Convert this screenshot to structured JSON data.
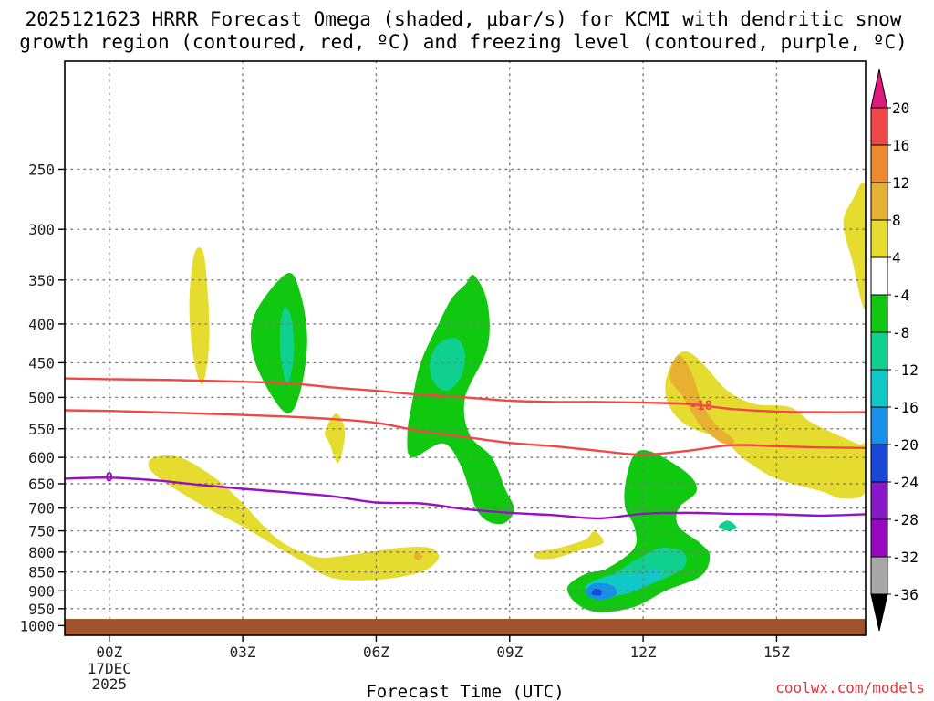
{
  "chart_data": {
    "type": "heatmap",
    "title_line1": "2025121623 HRRR Forecast Omega (shaded, μbar/s) for KCMI with dendritic snow",
    "title_line2": "growth region (contoured, red, ºC) and freezing level (contoured, purple, ºC)",
    "xlabel": "Forecast Time (UTC)",
    "credit": "coolwx.com/models",
    "x_ticks": [
      "00Z",
      "03Z",
      "06Z",
      "09Z",
      "12Z",
      "15Z"
    ],
    "x_tick_hours": [
      0,
      3,
      6,
      9,
      12,
      15
    ],
    "x_date_line1": "17DEC",
    "x_date_line2": "2025",
    "xlim_hours": [
      -1,
      17
    ],
    "y_ticks": [
      250,
      300,
      350,
      400,
      450,
      500,
      550,
      600,
      650,
      700,
      750,
      800,
      850,
      900,
      950,
      1000
    ],
    "y_tick_labels": [
      "250",
      "300",
      "350",
      "400",
      "450",
      "500",
      "550",
      "600",
      "650",
      "700",
      "750",
      "800",
      "850",
      "900",
      "950",
      "1000"
    ],
    "ylim_hpa": [
      180,
      1030
    ],
    "y_scale": "log",
    "colorbar": {
      "labels": [
        "20",
        "16",
        "12",
        "8",
        "4",
        "-4",
        "-8",
        "-12",
        "-16",
        "-20",
        "-24",
        "-28",
        "-32",
        "-36"
      ],
      "bins": [
        {
          "color": "#f04848"
        },
        {
          "color": "#ee8a30"
        },
        {
          "color": "#e8b030"
        },
        {
          "color": "#e6dc30"
        },
        {
          "color": "#ffffff"
        },
        {
          "color": "#10c810"
        },
        {
          "color": "#10d090"
        },
        {
          "color": "#10c8c8"
        },
        {
          "color": "#1890ea"
        },
        {
          "color": "#1848d8"
        },
        {
          "color": "#8818c8"
        },
        {
          "color": "#9808c0"
        },
        {
          "color": "#a8a8a8"
        }
      ],
      "top_arrow_color": "#e01880",
      "bottom_arrow_color": "#000000"
    },
    "ground_color": "#a0522d",
    "ground_hpa": 980,
    "contours": [
      {
        "name": "dgz-minus-12",
        "label": "",
        "color": "#f04848",
        "points": [
          [
            -1,
            472
          ],
          [
            0,
            473
          ],
          [
            2,
            475
          ],
          [
            4,
            479
          ],
          [
            5,
            485
          ],
          [
            6,
            490
          ],
          [
            7,
            496
          ],
          [
            8,
            500
          ],
          [
            9,
            505
          ],
          [
            10,
            507
          ],
          [
            11,
            507
          ],
          [
            12,
            508
          ],
          [
            13,
            510
          ],
          [
            14,
            518
          ],
          [
            15,
            522
          ],
          [
            16,
            523
          ],
          [
            17,
            523
          ]
        ]
      },
      {
        "name": "dgz-minus-18",
        "label": "-18",
        "label_at": [
          13.3,
          512
        ],
        "color": "#f04848",
        "points": [
          [
            -1,
            520
          ],
          [
            0,
            521
          ],
          [
            2,
            525
          ],
          [
            4,
            530
          ],
          [
            5,
            534
          ],
          [
            6,
            540
          ],
          [
            7,
            554
          ],
          [
            8,
            564
          ],
          [
            9,
            574
          ],
          [
            10,
            580
          ],
          [
            11,
            588
          ],
          [
            12,
            595
          ],
          [
            13,
            588
          ],
          [
            14,
            578
          ],
          [
            15,
            580
          ],
          [
            16,
            582
          ],
          [
            17,
            583
          ]
        ]
      },
      {
        "name": "freezing-level",
        "label": "0",
        "label_at": [
          0,
          637
        ],
        "color": "#9a10c0",
        "points": [
          [
            -1,
            640
          ],
          [
            0,
            638
          ],
          [
            1,
            643
          ],
          [
            2,
            652
          ],
          [
            3,
            660
          ],
          [
            4,
            667
          ],
          [
            5,
            675
          ],
          [
            6,
            688
          ],
          [
            7,
            690
          ],
          [
            8,
            702
          ],
          [
            9,
            710
          ],
          [
            10,
            715
          ],
          [
            11,
            722
          ],
          [
            12,
            712
          ],
          [
            13,
            710
          ],
          [
            14,
            712
          ],
          [
            15,
            713
          ],
          [
            16,
            716
          ],
          [
            17,
            713
          ]
        ]
      }
    ],
    "regions": [
      {
        "value": 6,
        "color": "#e6dc30",
        "points": [
          [
            1.9,
            325
          ],
          [
            2.1,
            320
          ],
          [
            2.2,
            355
          ],
          [
            2.25,
            420
          ],
          [
            2.1,
            480
          ],
          [
            1.9,
            445
          ],
          [
            1.8,
            380
          ]
        ]
      },
      {
        "value": -6,
        "color": "#10c810",
        "points": [
          [
            4.0,
            343
          ],
          [
            4.3,
            365
          ],
          [
            4.45,
            420
          ],
          [
            4.3,
            490
          ],
          [
            4.0,
            525
          ],
          [
            3.5,
            480
          ],
          [
            3.2,
            430
          ],
          [
            3.3,
            385
          ]
        ]
      },
      {
        "value": -10,
        "color": "#10d090",
        "points": [
          [
            3.95,
            380
          ],
          [
            4.1,
            395
          ],
          [
            4.15,
            440
          ],
          [
            4.0,
            480
          ],
          [
            3.85,
            440
          ],
          [
            3.85,
            400
          ]
        ]
      },
      {
        "value": 6,
        "color": "#e6dc30",
        "points": [
          [
            5.1,
            525
          ],
          [
            5.3,
            555
          ],
          [
            5.15,
            610
          ],
          [
            4.95,
            575
          ],
          [
            4.85,
            555
          ]
        ]
      },
      {
        "value": -6,
        "color": "#10c810",
        "points": [
          [
            8.0,
            355
          ],
          [
            8.2,
            345
          ],
          [
            8.5,
            375
          ],
          [
            8.5,
            430
          ],
          [
            8.0,
            500
          ],
          [
            8.1,
            560
          ],
          [
            8.6,
            600
          ],
          [
            8.9,
            660
          ],
          [
            9.1,
            705
          ],
          [
            8.8,
            735
          ],
          [
            8.3,
            710
          ],
          [
            7.9,
            615
          ],
          [
            7.5,
            575
          ],
          [
            6.8,
            600
          ],
          [
            6.7,
            560
          ],
          [
            6.8,
            510
          ],
          [
            7.0,
            450
          ],
          [
            7.4,
            400
          ],
          [
            7.7,
            370
          ]
        ]
      },
      {
        "value": -10,
        "color": "#10d090",
        "points": [
          [
            7.8,
            418
          ],
          [
            8.0,
            438
          ],
          [
            7.9,
            470
          ],
          [
            7.6,
            490
          ],
          [
            7.3,
            478
          ],
          [
            7.2,
            450
          ],
          [
            7.4,
            425
          ]
        ]
      },
      {
        "value": 6,
        "color": "#e6dc30",
        "points": [
          [
            1.0,
            600
          ],
          [
            1.6,
            600
          ],
          [
            2.4,
            640
          ],
          [
            3.0,
            690
          ],
          [
            3.8,
            770
          ],
          [
            4.6,
            810
          ],
          [
            5.2,
            810
          ],
          [
            6.5,
            790
          ],
          [
            7.2,
            790
          ],
          [
            7.4,
            815
          ],
          [
            7.0,
            850
          ],
          [
            6.0,
            870
          ],
          [
            5.0,
            865
          ],
          [
            4.3,
            820
          ],
          [
            3.8,
            790
          ],
          [
            3.0,
            740
          ],
          [
            2.2,
            700
          ],
          [
            1.3,
            650
          ],
          [
            0.9,
            620
          ]
        ]
      },
      {
        "value": 10,
        "color": "#e8b030",
        "points": [
          [
            6.9,
            800
          ],
          [
            7.05,
            810
          ],
          [
            6.95,
            820
          ],
          [
            6.85,
            812
          ]
        ]
      },
      {
        "value": -6,
        "color": "#10c810",
        "points": [
          [
            11.8,
            595
          ],
          [
            12.2,
            590
          ],
          [
            13.0,
            630
          ],
          [
            13.2,
            665
          ],
          [
            12.8,
            700
          ],
          [
            12.8,
            740
          ],
          [
            13.3,
            780
          ],
          [
            13.5,
            810
          ],
          [
            13.3,
            860
          ],
          [
            12.5,
            900
          ],
          [
            11.8,
            945
          ],
          [
            11.0,
            960
          ],
          [
            10.5,
            935
          ],
          [
            10.3,
            890
          ],
          [
            10.7,
            855
          ],
          [
            11.2,
            840
          ],
          [
            11.8,
            790
          ],
          [
            11.8,
            740
          ],
          [
            11.6,
            700
          ],
          [
            11.6,
            650
          ]
        ]
      },
      {
        "value": -10,
        "color": "#10d090",
        "points": [
          [
            12.0,
            810
          ],
          [
            12.4,
            790
          ],
          [
            12.9,
            800
          ],
          [
            12.9,
            840
          ],
          [
            12.2,
            880
          ],
          [
            11.6,
            900
          ],
          [
            11.2,
            875
          ],
          [
            11.6,
            835
          ]
        ]
      },
      {
        "value": -14,
        "color": "#10c8c8",
        "points": [
          [
            11.2,
            860
          ],
          [
            11.8,
            855
          ],
          [
            12.3,
            840
          ],
          [
            12.4,
            865
          ],
          [
            11.7,
            905
          ],
          [
            11.1,
            915
          ],
          [
            10.7,
            890
          ]
        ]
      },
      {
        "value": -18,
        "color": "#1890ea",
        "points": [
          [
            10.9,
            880
          ],
          [
            11.3,
            885
          ],
          [
            11.4,
            910
          ],
          [
            11.0,
            925
          ],
          [
            10.7,
            905
          ]
        ]
      },
      {
        "value": -22,
        "color": "#1848d8",
        "points": [
          [
            10.9,
            895
          ],
          [
            11.05,
            898
          ],
          [
            11.05,
            912
          ],
          [
            10.85,
            910
          ]
        ]
      },
      {
        "value": 6,
        "color": "#e6dc30",
        "points": [
          [
            13.0,
            435
          ],
          [
            13.4,
            455
          ],
          [
            13.9,
            490
          ],
          [
            14.5,
            510
          ],
          [
            15.3,
            515
          ],
          [
            15.8,
            540
          ],
          [
            16.8,
            575
          ],
          [
            17.0,
            580
          ],
          [
            17.0,
            665
          ],
          [
            16.5,
            680
          ],
          [
            16.0,
            665
          ],
          [
            15.0,
            640
          ],
          [
            14.3,
            605
          ],
          [
            13.8,
            570
          ],
          [
            13.0,
            545
          ],
          [
            12.6,
            515
          ],
          [
            12.5,
            480
          ],
          [
            12.7,
            445
          ]
        ]
      },
      {
        "value": 10,
        "color": "#e8b030",
        "points": [
          [
            12.8,
            440
          ],
          [
            13.1,
            465
          ],
          [
            13.3,
            505
          ],
          [
            13.6,
            540
          ],
          [
            14.05,
            570
          ],
          [
            13.8,
            575
          ],
          [
            13.3,
            545
          ],
          [
            12.9,
            500
          ],
          [
            12.6,
            470
          ]
        ]
      },
      {
        "value": 6,
        "color": "#e6dc30",
        "points": [
          [
            17.0,
            265
          ],
          [
            17.0,
            380
          ],
          [
            16.7,
            330
          ],
          [
            16.5,
            295
          ],
          [
            16.7,
            275
          ]
        ]
      },
      {
        "value": 6,
        "color": "#e6dc30",
        "points": [
          [
            9.6,
            800
          ],
          [
            10.1,
            790
          ],
          [
            10.7,
            770
          ],
          [
            10.9,
            750
          ],
          [
            11.1,
            778
          ],
          [
            10.6,
            795
          ],
          [
            10.0,
            815
          ],
          [
            9.6,
            815
          ]
        ]
      },
      {
        "value": -10,
        "color": "#10d090",
        "points": [
          [
            13.9,
            727
          ],
          [
            14.1,
            742
          ],
          [
            13.9,
            750
          ],
          [
            13.7,
            740
          ]
        ]
      }
    ]
  }
}
